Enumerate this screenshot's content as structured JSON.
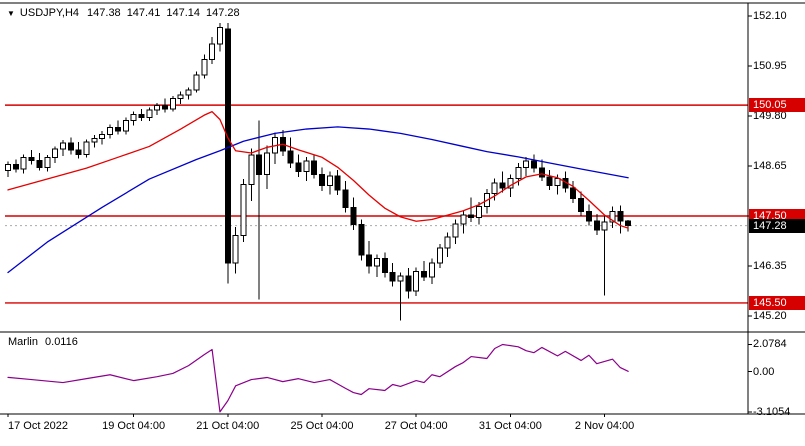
{
  "header": {
    "symbol_period": "USDJPY,H4",
    "open": "147.38",
    "high": "147.41",
    "low": "147.14",
    "close": "147.28"
  },
  "colors": {
    "bull": "#ffffff",
    "bear": "#000000",
    "outline": "#000000",
    "ma_slow": "#0000cc",
    "ma_fast": "#e60000",
    "level": "#d60000",
    "current_badge": "#000000",
    "indicator_line": "#8b008b",
    "frame": "#000000",
    "bid_line": "#aaaaaa"
  },
  "chart_data": {
    "type": "candlestick",
    "symbol": "USDJPY",
    "timeframe": "H4",
    "title": "USDJPY,H4 147.38 147.41 147.14 147.28",
    "y_axis": {
      "ticks": [
        "152.10",
        "150.95",
        "149.80",
        "148.65",
        "147.50",
        "146.35",
        "145.20"
      ]
    },
    "levels": [
      {
        "price": 150.05,
        "label": "150.05"
      },
      {
        "price": 147.5,
        "label": "147.50"
      },
      {
        "price": 145.5,
        "label": "145.50"
      }
    ],
    "current_price": {
      "price": 147.28,
      "label": "147.28"
    },
    "x_ticks": [
      {
        "i": 0,
        "label": "17 Oct 2022",
        "align": "start"
      },
      {
        "i": 16,
        "label": "19 Oct 04:00"
      },
      {
        "i": 28,
        "label": "21 Oct 04:00"
      },
      {
        "i": 40,
        "label": "25 Oct 04:00"
      },
      {
        "i": 52,
        "label": "27 Oct 04:00"
      },
      {
        "i": 64,
        "label": "31 Oct 04:00"
      },
      {
        "i": 76,
        "label": "2 Nov 04:00"
      }
    ],
    "candles": [
      [
        148.55,
        148.75,
        148.4,
        148.68
      ],
      [
        148.68,
        148.8,
        148.5,
        148.58
      ],
      [
        148.58,
        148.92,
        148.48,
        148.85
      ],
      [
        148.85,
        149.02,
        148.68,
        148.78
      ],
      [
        148.78,
        148.95,
        148.55,
        148.62
      ],
      [
        148.62,
        148.9,
        148.52,
        148.84
      ],
      [
        148.84,
        149.1,
        148.72,
        149.04
      ],
      [
        149.04,
        149.25,
        148.88,
        149.18
      ],
      [
        149.18,
        149.3,
        148.92,
        149.02
      ],
      [
        149.02,
        149.2,
        148.82,
        148.92
      ],
      [
        148.92,
        149.26,
        148.85,
        149.2
      ],
      [
        149.2,
        149.36,
        149.08,
        149.28
      ],
      [
        149.28,
        149.46,
        149.14,
        149.38
      ],
      [
        149.38,
        149.6,
        149.28,
        149.54
      ],
      [
        149.54,
        149.7,
        149.38,
        149.46
      ],
      [
        149.46,
        149.76,
        149.38,
        149.7
      ],
      [
        149.7,
        149.9,
        149.58,
        149.84
      ],
      [
        149.84,
        149.96,
        149.68,
        149.76
      ],
      [
        149.76,
        150.0,
        149.68,
        149.94
      ],
      [
        149.94,
        150.1,
        149.82,
        150.04
      ],
      [
        150.04,
        150.2,
        149.88,
        149.96
      ],
      [
        149.96,
        150.26,
        149.9,
        150.2
      ],
      [
        150.2,
        150.36,
        150.08,
        150.28
      ],
      [
        150.28,
        150.46,
        150.18,
        150.4
      ],
      [
        150.4,
        150.82,
        150.34,
        150.74
      ],
      [
        150.74,
        151.22,
        150.66,
        151.1
      ],
      [
        151.1,
        151.62,
        151.0,
        151.46
      ],
      [
        151.46,
        151.94,
        151.28,
        151.84
      ],
      [
        151.8,
        151.94,
        145.95,
        146.42
      ],
      [
        146.42,
        147.25,
        146.18,
        147.05
      ],
      [
        147.05,
        148.35,
        146.9,
        148.22
      ],
      [
        148.22,
        149.05,
        147.85,
        148.9
      ],
      [
        148.9,
        149.7,
        145.58,
        148.45
      ],
      [
        148.45,
        149.12,
        148.12,
        148.95
      ],
      [
        148.95,
        149.42,
        148.7,
        149.3
      ],
      [
        149.3,
        149.48,
        148.88,
        149.0
      ],
      [
        149.0,
        149.3,
        148.6,
        148.72
      ],
      [
        148.72,
        148.92,
        148.4,
        148.52
      ],
      [
        148.52,
        148.86,
        148.3,
        148.76
      ],
      [
        148.76,
        148.92,
        148.36,
        148.46
      ],
      [
        148.46,
        148.62,
        148.08,
        148.2
      ],
      [
        148.2,
        148.52,
        148.0,
        148.42
      ],
      [
        148.42,
        148.56,
        147.98,
        148.1
      ],
      [
        148.1,
        148.3,
        147.58,
        147.7
      ],
      [
        147.7,
        147.92,
        147.18,
        147.3
      ],
      [
        147.3,
        147.42,
        146.48,
        146.6
      ],
      [
        146.6,
        146.92,
        146.18,
        146.35
      ],
      [
        146.35,
        146.62,
        146.1,
        146.52
      ],
      [
        146.52,
        146.66,
        146.08,
        146.2
      ],
      [
        146.2,
        146.42,
        145.88,
        146.0
      ],
      [
        146.0,
        146.2,
        145.1,
        146.12
      ],
      [
        146.12,
        146.3,
        145.6,
        145.78
      ],
      [
        145.78,
        146.32,
        145.66,
        146.22
      ],
      [
        146.22,
        146.46,
        146.0,
        146.1
      ],
      [
        146.1,
        146.52,
        145.94,
        146.42
      ],
      [
        146.42,
        146.86,
        146.3,
        146.76
      ],
      [
        146.76,
        147.12,
        146.56,
        147.02
      ],
      [
        147.02,
        147.42,
        146.86,
        147.32
      ],
      [
        147.32,
        147.62,
        147.1,
        147.52
      ],
      [
        147.52,
        147.92,
        147.36,
        147.46
      ],
      [
        147.46,
        147.82,
        147.3,
        147.72
      ],
      [
        147.72,
        148.12,
        147.56,
        148.02
      ],
      [
        148.02,
        148.36,
        147.86,
        148.26
      ],
      [
        148.26,
        148.52,
        148.04,
        148.14
      ],
      [
        148.14,
        148.46,
        147.94,
        148.36
      ],
      [
        148.36,
        148.72,
        148.2,
        148.62
      ],
      [
        148.62,
        148.86,
        148.42,
        148.76
      ],
      [
        148.76,
        148.92,
        148.5,
        148.6
      ],
      [
        148.6,
        148.8,
        148.3,
        148.4
      ],
      [
        148.4,
        148.56,
        148.1,
        148.2
      ],
      [
        148.2,
        148.46,
        148.0,
        148.36
      ],
      [
        148.36,
        148.52,
        148.04,
        148.14
      ],
      [
        148.14,
        148.3,
        147.8,
        147.9
      ],
      [
        147.9,
        148.06,
        147.5,
        147.6
      ],
      [
        147.6,
        147.76,
        147.28,
        147.38
      ],
      [
        147.38,
        147.55,
        147.06,
        147.18
      ],
      [
        147.18,
        147.5,
        145.67,
        147.36
      ],
      [
        147.36,
        147.72,
        147.22,
        147.6
      ],
      [
        147.6,
        147.74,
        147.1,
        147.38
      ],
      [
        147.38,
        147.41,
        147.14,
        147.28
      ]
    ],
    "ma_slow": [
      [
        0,
        146.2
      ],
      [
        5,
        146.9
      ],
      [
        12,
        147.7
      ],
      [
        18,
        148.35
      ],
      [
        24,
        148.8
      ],
      [
        27,
        149.0
      ],
      [
        30,
        149.22
      ],
      [
        34,
        149.4
      ],
      [
        38,
        149.5
      ],
      [
        42,
        149.55
      ],
      [
        46,
        149.5
      ],
      [
        50,
        149.4
      ],
      [
        54,
        149.26
      ],
      [
        58,
        149.1
      ],
      [
        61,
        148.98
      ],
      [
        65,
        148.86
      ],
      [
        69,
        148.72
      ],
      [
        73,
        148.58
      ],
      [
        76,
        148.48
      ],
      [
        79,
        148.38
      ]
    ],
    "ma_fast": [
      [
        0,
        148.1
      ],
      [
        5,
        148.35
      ],
      [
        10,
        148.6
      ],
      [
        14,
        148.85
      ],
      [
        18,
        149.1
      ],
      [
        22,
        149.5
      ],
      [
        25,
        149.82
      ],
      [
        26,
        149.9
      ],
      [
        27,
        149.72
      ],
      [
        28,
        149.3
      ],
      [
        29,
        149.0
      ],
      [
        31,
        148.95
      ],
      [
        33,
        149.08
      ],
      [
        35,
        149.15
      ],
      [
        37,
        149.02
      ],
      [
        40,
        148.85
      ],
      [
        42,
        148.62
      ],
      [
        44,
        148.32
      ],
      [
        46,
        147.98
      ],
      [
        48,
        147.68
      ],
      [
        50,
        147.48
      ],
      [
        52,
        147.38
      ],
      [
        54,
        147.42
      ],
      [
        56,
        147.52
      ],
      [
        58,
        147.62
      ],
      [
        60,
        147.76
      ],
      [
        62,
        147.96
      ],
      [
        64,
        148.2
      ],
      [
        66,
        148.4
      ],
      [
        68,
        148.47
      ],
      [
        70,
        148.38
      ],
      [
        72,
        148.18
      ],
      [
        74,
        147.86
      ],
      [
        76,
        147.52
      ],
      [
        78,
        147.28
      ],
      [
        79,
        147.22
      ]
    ],
    "indicator": {
      "name": "Marlin",
      "value": "0.0116",
      "ticks": [
        {
          "value": 2.0784,
          "label": "2.0784"
        },
        {
          "value": 0,
          "label": "0.00"
        },
        {
          "value": -3.1054,
          "label": "-3.1054"
        }
      ],
      "points": [
        [
          0,
          -0.45
        ],
        [
          3,
          -0.62
        ],
        [
          7,
          -0.85
        ],
        [
          10,
          -0.55
        ],
        [
          13,
          -0.25
        ],
        [
          16,
          -0.7
        ],
        [
          19,
          -0.4
        ],
        [
          21,
          -0.15
        ],
        [
          23,
          0.45
        ],
        [
          25,
          1.3
        ],
        [
          26,
          1.69
        ],
        [
          27,
          -3.1054
        ],
        [
          28,
          -2.25
        ],
        [
          29,
          -1.1
        ],
        [
          31,
          -0.62
        ],
        [
          33,
          -0.46
        ],
        [
          35,
          -0.78
        ],
        [
          37,
          -0.55
        ],
        [
          39,
          -0.85
        ],
        [
          41,
          -0.62
        ],
        [
          43,
          -1.3
        ],
        [
          44,
          -1.62
        ],
        [
          45,
          -1.77
        ],
        [
          46,
          -1.32
        ],
        [
          48,
          -1.46
        ],
        [
          49,
          -1.0
        ],
        [
          50,
          -1.15
        ],
        [
          52,
          -0.7
        ],
        [
          53,
          -0.85
        ],
        [
          54,
          -0.25
        ],
        [
          55,
          -0.4
        ],
        [
          57,
          0.38
        ],
        [
          58,
          0.69
        ],
        [
          59,
          1.15
        ],
        [
          61,
          1.0
        ],
        [
          62,
          1.77
        ],
        [
          63,
          2.0784
        ],
        [
          65,
          1.9
        ],
        [
          66,
          1.6
        ],
        [
          67,
          1.45
        ],
        [
          68,
          1.85
        ],
        [
          70,
          1.2
        ],
        [
          71,
          1.55
        ],
        [
          73,
          0.85
        ],
        [
          74,
          1.25
        ],
        [
          75,
          0.6
        ],
        [
          77,
          0.95
        ],
        [
          78,
          0.3
        ],
        [
          79,
          0.0116
        ]
      ]
    }
  }
}
